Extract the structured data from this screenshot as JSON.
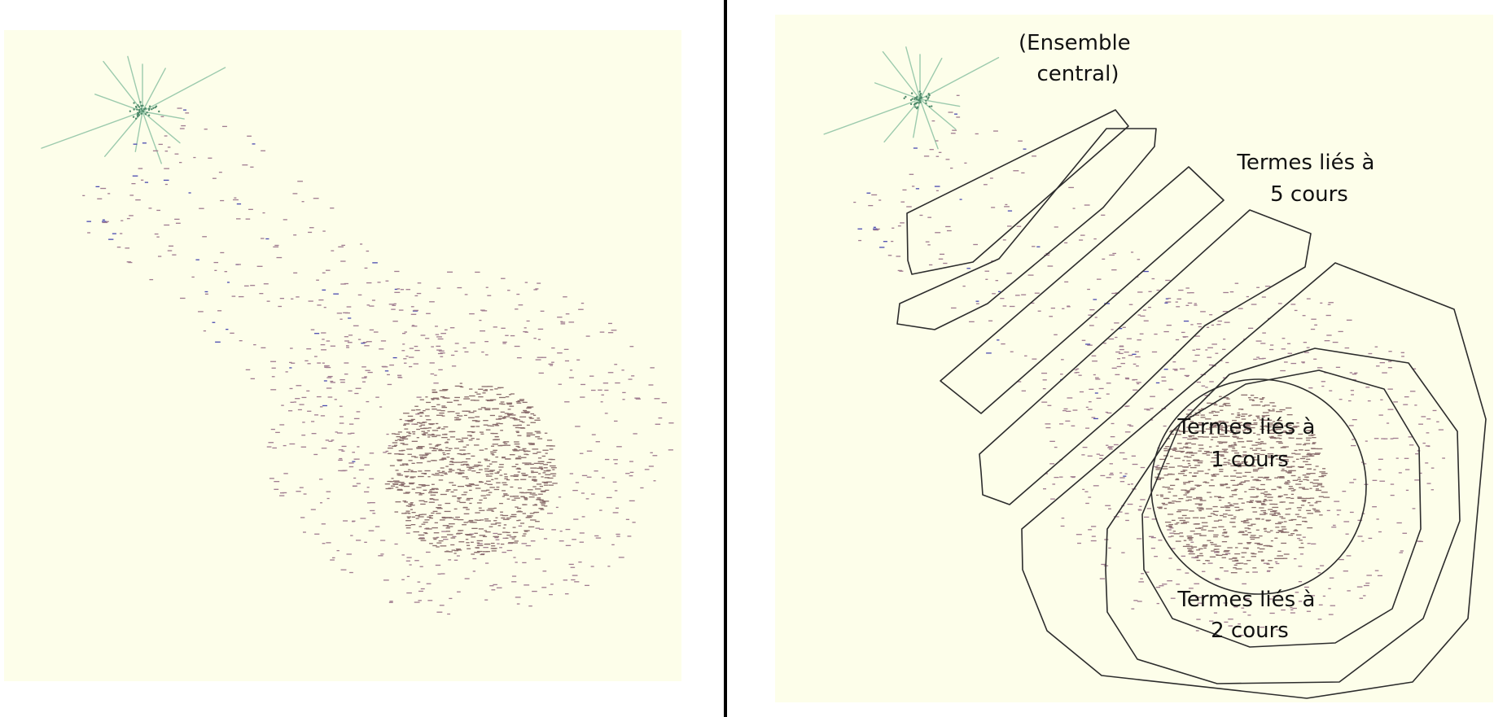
{
  "annotations": {
    "central": [
      "(Ensemble",
      "central)"
    ],
    "five_courses": [
      "Termes liés à",
      "5 cours"
    ],
    "one_course": [
      "Termes liés à",
      "1 cours"
    ],
    "two_courses": [
      "Termes liés à",
      "2 cours"
    ]
  },
  "colors": {
    "background": "#fdfeea",
    "star": "#8cc2a3",
    "dense_cluster": "#8a6d6d",
    "sparse_dots": "#a07c90",
    "blue_dots": "#4a4ab0",
    "outline": "#2c2c2c"
  }
}
